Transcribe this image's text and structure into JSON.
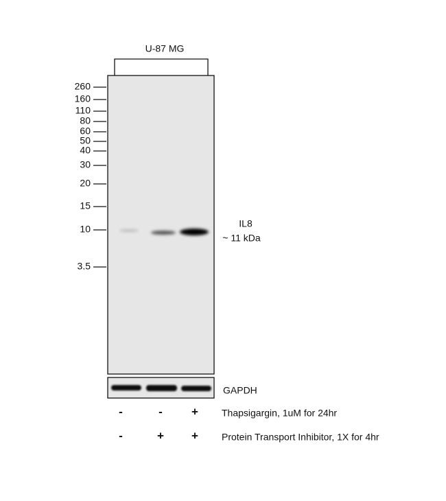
{
  "cell_line": "U-87 MG",
  "markers": [
    "260",
    "160",
    "110",
    "80",
    "60",
    "50",
    "40",
    "30",
    "20",
    "15",
    "10",
    "3.5"
  ],
  "target": {
    "name": "IL8",
    "size": "~ 11 kDa"
  },
  "loading_control": "GAPDH",
  "treatments": [
    {
      "label": "Thapsigargin, 1uM for 24hr",
      "lanes": [
        "-",
        "-",
        "+"
      ]
    },
    {
      "label": "Protein Transport Inhibitor, 1X for 4hr",
      "lanes": [
        "-",
        "+",
        "+"
      ]
    }
  ]
}
